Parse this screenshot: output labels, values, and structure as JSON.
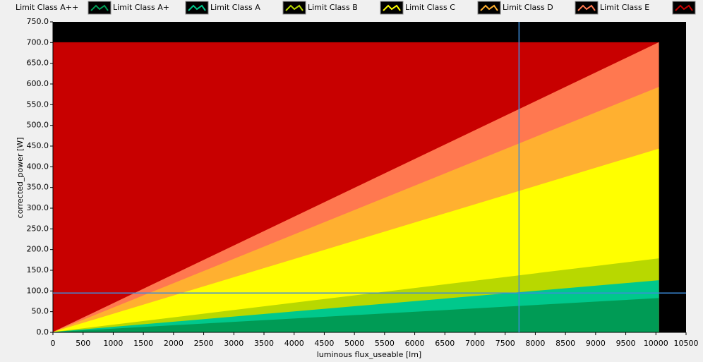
{
  "chart_data": {
    "type": "area",
    "x": [
      0,
      10050
    ],
    "series": [
      {
        "name": "Limit Class A++",
        "color": "#009b55",
        "values": [
          0,
          82
        ]
      },
      {
        "name": "Limit Class A+",
        "color": "#00c88c",
        "values": [
          0,
          125
        ]
      },
      {
        "name": "Limit Class A",
        "color": "#b8d800",
        "values": [
          0,
          178
        ]
      },
      {
        "name": "Limit Class B",
        "color": "#ffff00",
        "values": [
          0,
          443
        ]
      },
      {
        "name": "Limit Class C",
        "color": "#ffb030",
        "values": [
          0,
          592
        ]
      },
      {
        "name": "Limit Class D",
        "color": "#ff7850",
        "values": [
          0,
          700
        ]
      },
      {
        "name": "Limit Class E",
        "color": "#c80000",
        "values": [
          700,
          700
        ]
      }
    ],
    "xlabel": "luminous flux_useable [lm]",
    "ylabel": "corrected_power [W]",
    "xlim": [
      0,
      10500
    ],
    "ylim": [
      0,
      750
    ],
    "xticks": [
      0,
      500,
      1000,
      1500,
      2000,
      2500,
      3000,
      3500,
      4000,
      4500,
      5000,
      5500,
      6000,
      6500,
      7000,
      7500,
      8000,
      8500,
      9000,
      9500,
      10000,
      10500
    ],
    "yticks": [
      {
        "value": 0,
        "label": "0.0"
      },
      {
        "value": 50,
        "label": "50.0"
      },
      {
        "value": 100,
        "label": "100.0"
      },
      {
        "value": 150,
        "label": "150.0"
      },
      {
        "value": 200,
        "label": "200.0"
      },
      {
        "value": 250,
        "label": "250.0"
      },
      {
        "value": 300,
        "label": "300.0"
      },
      {
        "value": 350,
        "label": "350.0"
      },
      {
        "value": 400,
        "label": "400.0"
      },
      {
        "value": 450,
        "label": "450.0"
      },
      {
        "value": 500,
        "label": "500.0"
      },
      {
        "value": 550,
        "label": "550.0"
      },
      {
        "value": 600,
        "label": "600.0"
      },
      {
        "value": 650,
        "label": "650.0"
      },
      {
        "value": 700,
        "label": "700.0"
      },
      {
        "value": 750,
        "label": "750.0"
      }
    ],
    "cursor": {
      "x": 7730,
      "y": 95,
      "color": "#3c8cdc"
    },
    "plot_background": "#000000"
  }
}
